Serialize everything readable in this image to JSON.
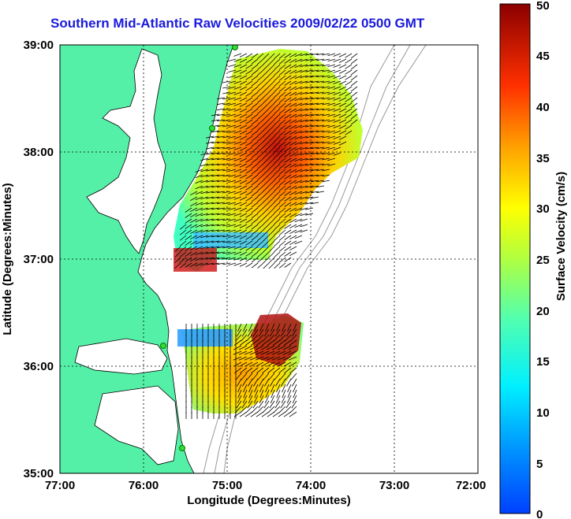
{
  "title": "Southern Mid-Atlantic Raw Velocities 2009/02/22 0500 GMT",
  "x_axis": {
    "label": "Longitude (Degrees:Minutes)",
    "ticks": [
      "77:00",
      "76:00",
      "75:00",
      "74:00",
      "73:00",
      "72:00"
    ]
  },
  "y_axis": {
    "label": "Latitude (Degrees:Minutes)",
    "ticks": [
      "39:00",
      "38:00",
      "37:00",
      "36:00",
      "35:00"
    ]
  },
  "colorbar": {
    "label": "Surface Velocity (cm/s)",
    "ticks": [
      "50",
      "45",
      "40",
      "35",
      "30",
      "25",
      "20",
      "15",
      "10",
      "5",
      "0"
    ],
    "range": [
      0,
      50
    ]
  },
  "colors": {
    "land": "#55f0a8",
    "water": "#ffffff",
    "title": "#1a1adc",
    "station": "#33dd33"
  },
  "map": {
    "lon_range": [
      -77,
      -72
    ],
    "lat_range": [
      35,
      39
    ],
    "grid": true
  }
}
